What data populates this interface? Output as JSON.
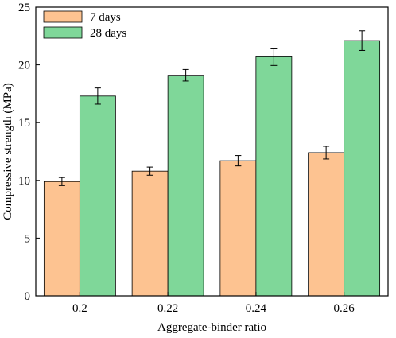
{
  "chart_data": {
    "type": "bar",
    "categories": [
      "0.2",
      "0.22",
      "0.24",
      "0.26"
    ],
    "series": [
      {
        "name": "7 days",
        "values": [
          9.9,
          10.8,
          11.7,
          12.4
        ],
        "errors": [
          0.35,
          0.35,
          0.45,
          0.55
        ],
        "color": "#FDC391"
      },
      {
        "name": "28 days",
        "values": [
          17.3,
          19.1,
          20.7,
          22.1
        ],
        "errors": [
          0.7,
          0.5,
          0.75,
          0.85
        ],
        "color": "#7FD799"
      }
    ],
    "title": "",
    "xlabel": "Aggregate-binder ratio",
    "ylabel": "Compressive strength (MPa)",
    "ylim": [
      0,
      25
    ],
    "yticks": [
      0,
      5,
      10,
      15,
      20,
      25
    ],
    "ytick_labels": [
      "0",
      "5",
      "10",
      "15",
      "20",
      "25"
    ],
    "grid": false,
    "legend_position": "top-left"
  }
}
